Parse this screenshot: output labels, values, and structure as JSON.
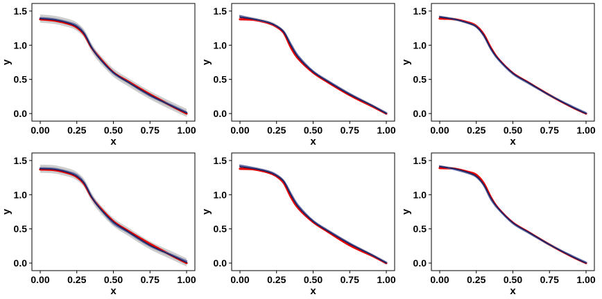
{
  "chart_data": [
    {
      "type": "line",
      "panel": "top-left",
      "xlabel": "x",
      "ylabel": "y",
      "xlim": [
        0,
        1
      ],
      "ylim": [
        -0.05,
        1.55
      ],
      "x_ticks": [
        "0.00",
        "0.25",
        "0.50",
        "0.75",
        "1.00"
      ],
      "y_ticks": [
        "0.0",
        "0.5",
        "1.0",
        "1.5"
      ],
      "x": [
        0,
        0.1,
        0.2,
        0.25,
        0.3,
        0.35,
        0.4,
        0.5,
        0.6,
        0.75,
        0.9,
        1.0
      ],
      "band_width": 0.06,
      "series": [
        {
          "color": "#e60000",
          "values": [
            1.38,
            1.36,
            1.31,
            1.26,
            1.16,
            0.97,
            0.83,
            0.6,
            0.47,
            0.28,
            0.11,
            0.0
          ]
        },
        {
          "color": "#6a74a8",
          "values": [
            1.4,
            1.38,
            1.33,
            1.29,
            1.18,
            0.98,
            0.82,
            0.59,
            0.46,
            0.26,
            0.12,
            0.02
          ]
        },
        {
          "color": "#202060",
          "values": [
            1.39,
            1.37,
            1.32,
            1.27,
            1.17,
            0.97,
            0.82,
            0.6,
            0.46,
            0.27,
            0.11,
            0.01
          ]
        }
      ]
    },
    {
      "type": "line",
      "panel": "top-middle",
      "xlabel": "x",
      "ylabel": "y",
      "xlim": [
        0,
        1
      ],
      "ylim": [
        -0.05,
        1.55
      ],
      "x_ticks": [
        "0.00",
        "0.25",
        "0.50",
        "0.75",
        "1.00"
      ],
      "y_ticks": [
        "0.0",
        "0.5",
        "1.0",
        "1.5"
      ],
      "x": [
        0,
        0.1,
        0.2,
        0.25,
        0.3,
        0.35,
        0.4,
        0.5,
        0.6,
        0.75,
        0.9,
        1.0
      ],
      "band_width": 0.025,
      "series": [
        {
          "color": "#e60000",
          "values": [
            1.38,
            1.37,
            1.32,
            1.27,
            1.18,
            0.96,
            0.8,
            0.6,
            0.46,
            0.27,
            0.11,
            0.0
          ]
        },
        {
          "color": "#6a74a8",
          "values": [
            1.43,
            1.38,
            1.33,
            1.28,
            1.2,
            1.01,
            0.84,
            0.62,
            0.48,
            0.29,
            0.12,
            0.01
          ]
        },
        {
          "color": "#202060",
          "values": [
            1.41,
            1.38,
            1.33,
            1.28,
            1.19,
            0.99,
            0.82,
            0.61,
            0.47,
            0.28,
            0.12,
            0.0
          ]
        }
      ]
    },
    {
      "type": "line",
      "panel": "top-right",
      "xlabel": "x",
      "ylabel": "y",
      "xlim": [
        0,
        1
      ],
      "ylim": [
        -0.05,
        1.55
      ],
      "x_ticks": [
        "0.00",
        "0.25",
        "0.50",
        "0.75",
        "1.00"
      ],
      "y_ticks": [
        "0.0",
        "0.5",
        "1.0",
        "1.5"
      ],
      "x": [
        0,
        0.1,
        0.2,
        0.25,
        0.3,
        0.35,
        0.4,
        0.5,
        0.6,
        0.75,
        0.9,
        1.0
      ],
      "band_width": 0.02,
      "series": [
        {
          "color": "#e60000",
          "values": [
            1.39,
            1.38,
            1.33,
            1.28,
            1.16,
            0.96,
            0.8,
            0.59,
            0.46,
            0.27,
            0.1,
            0.0
          ]
        },
        {
          "color": "#6a74a8",
          "values": [
            1.42,
            1.38,
            1.32,
            1.27,
            1.14,
            0.94,
            0.79,
            0.58,
            0.45,
            0.27,
            0.11,
            0.01
          ]
        },
        {
          "color": "#202060",
          "values": [
            1.41,
            1.38,
            1.32,
            1.27,
            1.15,
            0.95,
            0.8,
            0.59,
            0.46,
            0.27,
            0.1,
            0.0
          ]
        }
      ]
    },
    {
      "type": "line",
      "panel": "bottom-left",
      "xlabel": "x",
      "ylabel": "y",
      "xlim": [
        0,
        1
      ],
      "ylim": [
        -0.05,
        1.55
      ],
      "x_ticks": [
        "0.00",
        "0.25",
        "0.50",
        "0.75",
        "1.00"
      ],
      "y_ticks": [
        "0.0",
        "0.5",
        "1.0",
        "1.5"
      ],
      "x": [
        0,
        0.1,
        0.2,
        0.25,
        0.3,
        0.35,
        0.4,
        0.5,
        0.6,
        0.75,
        0.9,
        1.0
      ],
      "band_width": 0.06,
      "series": [
        {
          "color": "#e60000",
          "values": [
            1.37,
            1.36,
            1.31,
            1.26,
            1.16,
            0.97,
            0.83,
            0.61,
            0.47,
            0.28,
            0.11,
            0.0
          ]
        },
        {
          "color": "#6a74a8",
          "values": [
            1.39,
            1.38,
            1.33,
            1.29,
            1.18,
            0.98,
            0.82,
            0.58,
            0.45,
            0.25,
            0.12,
            0.03
          ]
        },
        {
          "color": "#202060",
          "values": [
            1.38,
            1.37,
            1.32,
            1.27,
            1.17,
            0.97,
            0.82,
            0.6,
            0.46,
            0.26,
            0.11,
            0.01
          ]
        }
      ]
    },
    {
      "type": "line",
      "panel": "bottom-middle",
      "xlabel": "x",
      "ylabel": "y",
      "xlim": [
        0,
        1
      ],
      "ylim": [
        -0.05,
        1.55
      ],
      "x_ticks": [
        "0.00",
        "0.25",
        "0.50",
        "0.75",
        "1.00"
      ],
      "y_ticks": [
        "0.0",
        "0.5",
        "1.0",
        "1.5"
      ],
      "x": [
        0,
        0.1,
        0.2,
        0.25,
        0.3,
        0.35,
        0.4,
        0.5,
        0.6,
        0.75,
        0.9,
        1.0
      ],
      "band_width": 0.025,
      "series": [
        {
          "color": "#e60000",
          "values": [
            1.38,
            1.37,
            1.32,
            1.27,
            1.17,
            0.96,
            0.8,
            0.6,
            0.46,
            0.26,
            0.11,
            0.0
          ]
        },
        {
          "color": "#6a74a8",
          "values": [
            1.43,
            1.39,
            1.34,
            1.29,
            1.2,
            1.01,
            0.84,
            0.62,
            0.48,
            0.29,
            0.12,
            0.01
          ]
        },
        {
          "color": "#202060",
          "values": [
            1.41,
            1.38,
            1.33,
            1.28,
            1.19,
            0.99,
            0.82,
            0.61,
            0.47,
            0.28,
            0.12,
            0.0
          ]
        }
      ]
    },
    {
      "type": "line",
      "panel": "bottom-right",
      "xlabel": "x",
      "ylabel": "y",
      "xlim": [
        0,
        1
      ],
      "ylim": [
        -0.05,
        1.55
      ],
      "x_ticks": [
        "0.00",
        "0.25",
        "0.50",
        "0.75",
        "1.00"
      ],
      "y_ticks": [
        "0.0",
        "0.5",
        "1.0",
        "1.5"
      ],
      "x": [
        0,
        0.1,
        0.2,
        0.25,
        0.3,
        0.35,
        0.4,
        0.5,
        0.6,
        0.75,
        0.9,
        1.0
      ],
      "band_width": 0.02,
      "series": [
        {
          "color": "#e60000",
          "values": [
            1.39,
            1.38,
            1.33,
            1.29,
            1.17,
            0.96,
            0.8,
            0.59,
            0.46,
            0.27,
            0.1,
            0.0
          ]
        },
        {
          "color": "#6a74a8",
          "values": [
            1.42,
            1.37,
            1.31,
            1.26,
            1.14,
            0.93,
            0.79,
            0.58,
            0.45,
            0.27,
            0.11,
            0.01
          ]
        },
        {
          "color": "#202060",
          "values": [
            1.41,
            1.38,
            1.32,
            1.27,
            1.15,
            0.95,
            0.8,
            0.59,
            0.46,
            0.27,
            0.1,
            0.0
          ]
        }
      ]
    }
  ]
}
